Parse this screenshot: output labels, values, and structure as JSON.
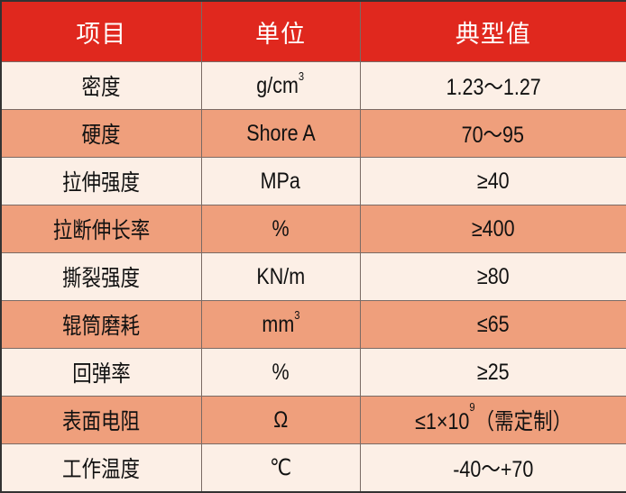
{
  "colors": {
    "header_bg": "#e0281e",
    "row_light": "#fcefe6",
    "row_dark": "#ef9f7c"
  },
  "header": [
    "项目",
    "单位",
    "典型值"
  ],
  "rows": [
    {
      "item": "密度",
      "unit": "g/cm",
      "unit_sup": "3",
      "value": "1.23～1.27",
      "value_sup": "",
      "value_suffix": ""
    },
    {
      "item": "硬度",
      "unit": "Shore A",
      "unit_sup": "",
      "value": "70～95",
      "value_sup": "",
      "value_suffix": ""
    },
    {
      "item": "拉伸强度",
      "unit": "MPa",
      "unit_sup": "",
      "value": "≥40",
      "value_sup": "",
      "value_suffix": ""
    },
    {
      "item": "拉断伸长率",
      "unit": "%",
      "unit_sup": "",
      "value": "≥400",
      "value_sup": "",
      "value_suffix": ""
    },
    {
      "item": "撕裂强度",
      "unit": "KN/m",
      "unit_sup": "",
      "value": "≥80",
      "value_sup": "",
      "value_suffix": ""
    },
    {
      "item": "辊筒磨耗",
      "unit": "mm",
      "unit_sup": "3",
      "value": "≤65",
      "value_sup": "",
      "value_suffix": ""
    },
    {
      "item": "回弹率",
      "unit": "%",
      "unit_sup": "",
      "value": "≥25",
      "value_sup": "",
      "value_suffix": ""
    },
    {
      "item": "表面电阻",
      "unit": "Ω",
      "unit_sup": "",
      "value": "≤1×10",
      "value_sup": "9",
      "value_suffix": "（需定制）"
    },
    {
      "item": "工作温度",
      "unit": "℃",
      "unit_sup": "",
      "value": "-40～+70",
      "value_sup": "",
      "value_suffix": ""
    }
  ]
}
